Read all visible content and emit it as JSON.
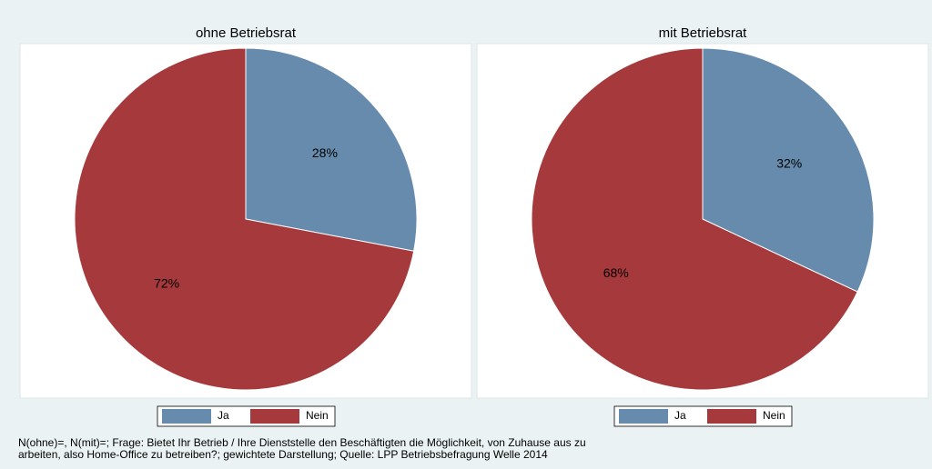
{
  "chart_data": [
    {
      "type": "pie",
      "title": "ohne Betriebsrat",
      "categories": [
        "Ja",
        "Nein"
      ],
      "values": [
        28,
        72
      ],
      "value_labels": [
        "28%",
        "72%"
      ],
      "colors": [
        "#668bad",
        "#a6393b"
      ]
    },
    {
      "type": "pie",
      "title": "mit Betriebsrat",
      "categories": [
        "Ja",
        "Nein"
      ],
      "values": [
        32,
        68
      ],
      "value_labels": [
        "32%",
        "68%"
      ],
      "colors": [
        "#668bad",
        "#a6393b"
      ]
    }
  ],
  "footnote": [
    "N(ohne)=, N(mit)=; Frage: Bietet Ihr Betrieb / Ihre Dienststelle den Beschäftigten die Möglichkeit, von Zuhause aus zu",
    "arbeiten, also Home-Office zu betreiben?; gewichtete Darstellung; Quelle: LPP Betriebsbefragung Welle 2014"
  ]
}
